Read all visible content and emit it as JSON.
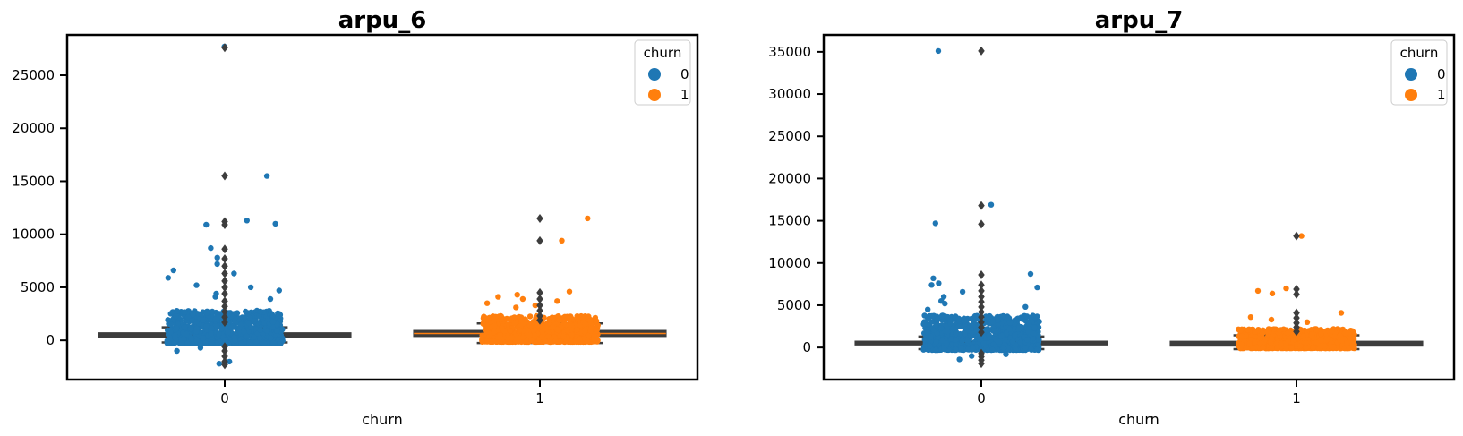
{
  "chart_data": [
    {
      "type": "box",
      "title": "arpu_6",
      "xlabel": "churn",
      "ylabel": "",
      "categories": [
        "0",
        "1"
      ],
      "ylim": [
        -3700,
        28800
      ],
      "yticks": [
        0,
        5000,
        10000,
        15000,
        20000,
        25000
      ],
      "ytick_labels": [
        "0",
        "5000",
        "10000",
        "15000",
        "20000",
        "25000"
      ],
      "grid": false,
      "legend": {
        "title": "churn",
        "placement": "top-right",
        "entries": [
          {
            "label": "0",
            "color": "#1f77b4"
          },
          {
            "label": "1",
            "color": "#ff7f0e"
          }
        ]
      },
      "boxes": [
        {
          "category": "0",
          "whisker_low": -200,
          "q1": 310,
          "median": 480,
          "q3": 700,
          "whisker_high": 1230,
          "outliers": [
            27600,
            15500,
            11200,
            10900,
            8600,
            7700,
            7000,
            6300,
            5600,
            5000,
            4400,
            3700,
            3200,
            2700,
            2200,
            1700,
            -600,
            -1000,
            -1500,
            -2000,
            -2300
          ]
        },
        {
          "category": "1",
          "whisker_low": -250,
          "q1": 380,
          "median": 650,
          "q3": 920,
          "whisker_high": 1600,
          "outliers": [
            11500,
            9400,
            4500,
            3900,
            3300,
            2800,
            2300,
            1900
          ]
        }
      ],
      "strip": [
        {
          "category": "0",
          "color": "#1f77b4",
          "bulk_low": -300,
          "bulk_high": 2800,
          "extremes": [
            27700,
            15500,
            11300,
            11000,
            10900,
            8700,
            7800,
            7200,
            6600,
            6300,
            5900,
            5200,
            5000,
            4700,
            4400,
            4100,
            3900,
            -700,
            -1000,
            -2000,
            -2200
          ]
        },
        {
          "category": "1",
          "color": "#ff7f0e",
          "bulk_low": -150,
          "bulk_high": 2300,
          "extremes": [
            11500,
            9400,
            4600,
            4300,
            4100,
            3900,
            3700,
            3500,
            3300,
            3100
          ]
        }
      ]
    },
    {
      "type": "box",
      "title": "arpu_7",
      "xlabel": "churn",
      "ylabel": "",
      "categories": [
        "0",
        "1"
      ],
      "ylim": [
        -3800,
        37000
      ],
      "yticks": [
        0,
        5000,
        10000,
        15000,
        20000,
        25000,
        30000,
        35000
      ],
      "ytick_labels": [
        "0",
        "5000",
        "10000",
        "15000",
        "20000",
        "25000",
        "30000",
        "35000"
      ],
      "grid": false,
      "legend": {
        "title": "churn",
        "placement": "top-right",
        "entries": [
          {
            "label": "0",
            "color": "#1f77b4"
          },
          {
            "label": "1",
            "color": "#ff7f0e"
          }
        ]
      },
      "boxes": [
        {
          "category": "0",
          "whisker_low": -200,
          "q1": 320,
          "median": 500,
          "q3": 730,
          "whisker_high": 1300,
          "outliers": [
            35100,
            16800,
            14600,
            8600,
            7400,
            6700,
            6000,
            5400,
            4800,
            4200,
            3600,
            3000,
            2400,
            1800,
            -700,
            -1100,
            -1500,
            -1900
          ]
        },
        {
          "category": "1",
          "whisker_low": -200,
          "q1": 180,
          "median": 360,
          "q3": 720,
          "whisker_high": 1450,
          "outliers": [
            13200,
            6900,
            6300,
            4100,
            3500,
            2900,
            2400,
            1900
          ]
        }
      ],
      "strip": [
        {
          "category": "0",
          "color": "#1f77b4",
          "bulk_low": -300,
          "bulk_high": 3800,
          "extremes": [
            35100,
            16900,
            14700,
            8700,
            8200,
            7600,
            7400,
            7100,
            6600,
            6000,
            5500,
            5200,
            4800,
            4500,
            -800,
            -1000,
            -1400
          ]
        },
        {
          "category": "1",
          "color": "#ff7f0e",
          "bulk_low": -100,
          "bulk_high": 2200,
          "extremes": [
            13200,
            7000,
            6700,
            6400,
            4100,
            3600,
            3300,
            3000
          ]
        }
      ]
    }
  ]
}
